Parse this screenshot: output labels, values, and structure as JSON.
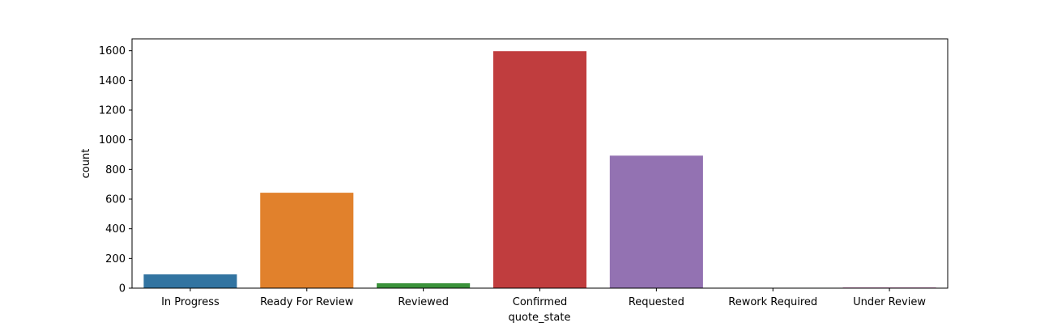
{
  "chart_data": {
    "type": "bar",
    "title": "",
    "xlabel": "quote_state",
    "ylabel": "count",
    "categories": [
      "In Progress",
      "Ready For Review",
      "Reviewed",
      "Confirmed",
      "Requested",
      "Rework Required",
      "Under Review"
    ],
    "values": [
      93,
      643,
      33,
      1597,
      893,
      2,
      5
    ],
    "colors": [
      "#3274a1",
      "#e1812c",
      "#3a923a",
      "#c03d3e",
      "#9372b2",
      "#845b53",
      "#d684bd"
    ],
    "ylim": [
      0,
      1680
    ],
    "yticks": [
      0,
      200,
      400,
      600,
      800,
      1000,
      1200,
      1400,
      1600
    ],
    "grid": false,
    "legend": "none"
  }
}
